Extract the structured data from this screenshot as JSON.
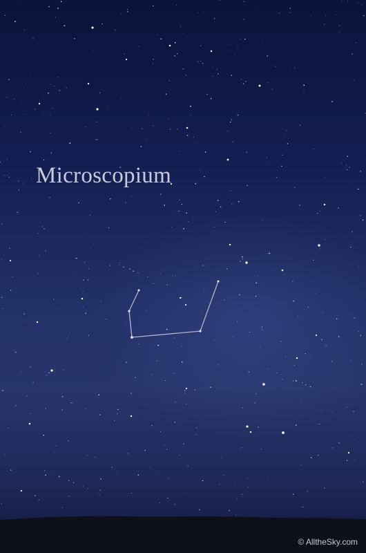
{
  "image": {
    "constellation_name": "Microscopium",
    "credit": "© AlltheSky.com",
    "sky_top_color": "#0a1338",
    "sky_mid_color": "#223068",
    "horizon_color": "#0d0f1a",
    "star_color": "#ffffff",
    "line_color": "#c9cbd6"
  }
}
